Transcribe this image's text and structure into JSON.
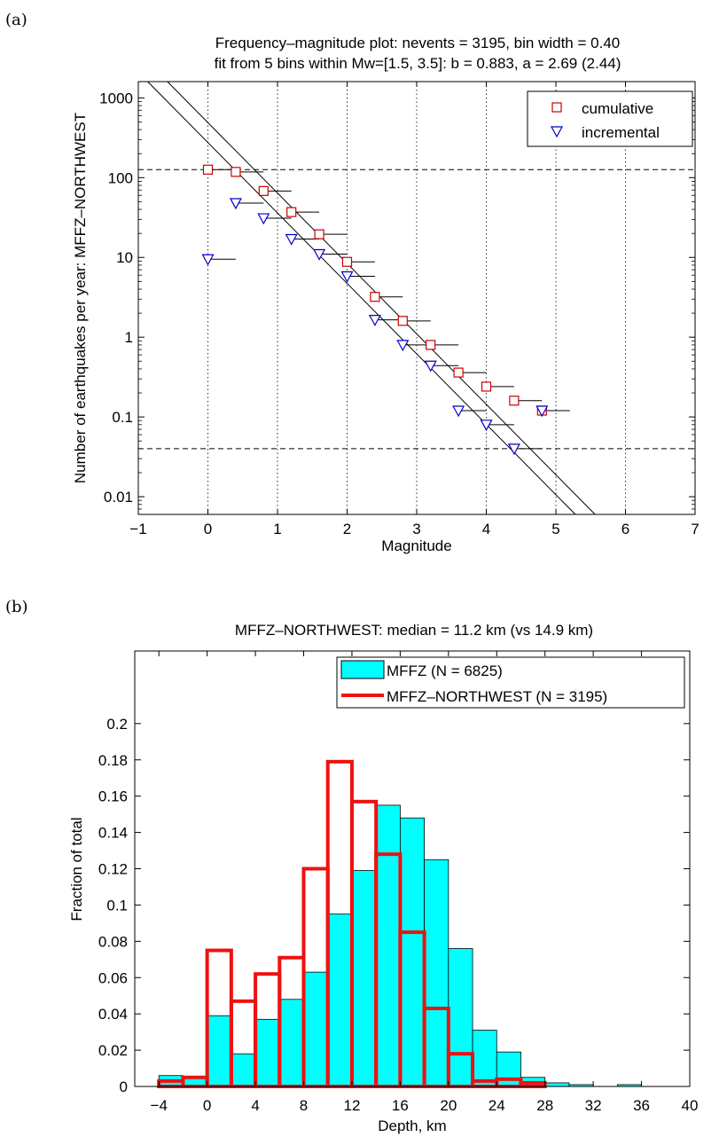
{
  "panel_a": {
    "letter": "(a)",
    "title_line1": "Frequency–magnitude plot: nevents = 3195, bin width = 0.40",
    "title_line2": "fit from 5 bins within Mw=[1.5, 3.5]: b = 0.883, a = 2.69 (2.44)",
    "xlabel": "Magnitude",
    "ylabel": "Number of earthquakes per year: MFFZ–NORTHWEST"
  },
  "panel_b": {
    "letter": "(b)",
    "title": "MFFZ–NORTHWEST: median = 11.2 km (vs 14.9 km)",
    "xlabel": "Depth, km",
    "ylabel": "Fraction of total"
  },
  "colors": {
    "cumulative": "#cc0000",
    "incremental": "#0000cc",
    "hist_fill": "#00ffff",
    "hist_line": "#ee1111"
  },
  "chart_data": [
    {
      "type": "scatter",
      "title": "Frequency–magnitude plot: nevents = 3195, bin width = 0.40 / fit from 5 bins within Mw=[1.5, 3.5]: b = 0.883, a = 2.69 (2.44)",
      "xlabel": "Magnitude",
      "ylabel": "Number of earthquakes per year: MFFZ–NORTHWEST",
      "xscale": "linear",
      "yscale": "log",
      "xlim": [
        -1,
        7
      ],
      "ylim": [
        0.006,
        1600
      ],
      "xticks": [
        "−1",
        "0",
        "1",
        "2",
        "3",
        "4",
        "5",
        "6",
        "7"
      ],
      "yticks": [
        "0.01",
        "0.1",
        "1",
        "10",
        "100",
        "1000"
      ],
      "grid": "vertical dotted",
      "legend": "top-right",
      "bin_width": 0.4,
      "series": [
        {
          "name": "cumulative",
          "marker": "square",
          "x": [
            0.0,
            0.4,
            0.8,
            1.2,
            1.6,
            2.0,
            2.4,
            2.8,
            3.2,
            3.6,
            4.0,
            4.4,
            4.8
          ],
          "y": [
            126,
            118,
            68,
            37,
            19.5,
            8.8,
            3.2,
            1.6,
            0.8,
            0.36,
            0.24,
            0.16,
            0.12
          ]
        },
        {
          "name": "incremental",
          "marker": "triangle-down",
          "x": [
            0.0,
            0.4,
            0.8,
            1.2,
            1.6,
            2.0,
            2.4,
            2.8,
            3.2,
            3.6,
            4.0,
            4.4,
            4.8
          ],
          "y": [
            9.5,
            48,
            31,
            17,
            11,
            5.8,
            1.65,
            0.8,
            0.44,
            0.12,
            0.08,
            0.04,
            0.12
          ]
        }
      ],
      "fit_lines": [
        {
          "a": 2.69,
          "b": 0.883
        },
        {
          "a": 2.44,
          "b": 0.883
        }
      ],
      "horizontal_dashed_lines": [
        126,
        0.04
      ]
    },
    {
      "type": "bar",
      "title": "MFFZ–NORTHWEST: median = 11.2 km (vs 14.9 km)",
      "xlabel": "Depth, km",
      "ylabel": "Fraction of total",
      "xlim": [
        -6,
        40
      ],
      "ylim": [
        0,
        0.24
      ],
      "xticks": [
        "−4",
        "0",
        "4",
        "8",
        "12",
        "16",
        "20",
        "24",
        "28",
        "32",
        "36",
        "40"
      ],
      "yticks": [
        "0",
        "0.02",
        "0.04",
        "0.06",
        "0.08",
        "0.1",
        "0.12",
        "0.14",
        "0.16",
        "0.18",
        "0.2"
      ],
      "legend": "top-right",
      "bin_edges": [
        -4,
        -2,
        0,
        2,
        4,
        6,
        8,
        10,
        12,
        14,
        16,
        18,
        20,
        22,
        24,
        26,
        28,
        30,
        32,
        34,
        36,
        38,
        40
      ],
      "series": [
        {
          "name": "MFFZ (N = 6825)",
          "style": "filled",
          "values": [
            0.006,
            0.005,
            0.039,
            0.018,
            0.037,
            0.048,
            0.063,
            0.095,
            0.119,
            0.155,
            0.148,
            0.125,
            0.076,
            0.031,
            0.019,
            0.005,
            0.002,
            0.001,
            0.0,
            0.001,
            0.0,
            0.0
          ]
        },
        {
          "name": "MFFZ–NORTHWEST (N = 3195)",
          "style": "step",
          "values": [
            0.003,
            0.005,
            0.075,
            0.047,
            0.062,
            0.071,
            0.12,
            0.179,
            0.157,
            0.128,
            0.085,
            0.043,
            0.018,
            0.003,
            0.004,
            0.002,
            0.0,
            0.0,
            0.0,
            0.0,
            0.0,
            0.0
          ]
        }
      ]
    }
  ]
}
